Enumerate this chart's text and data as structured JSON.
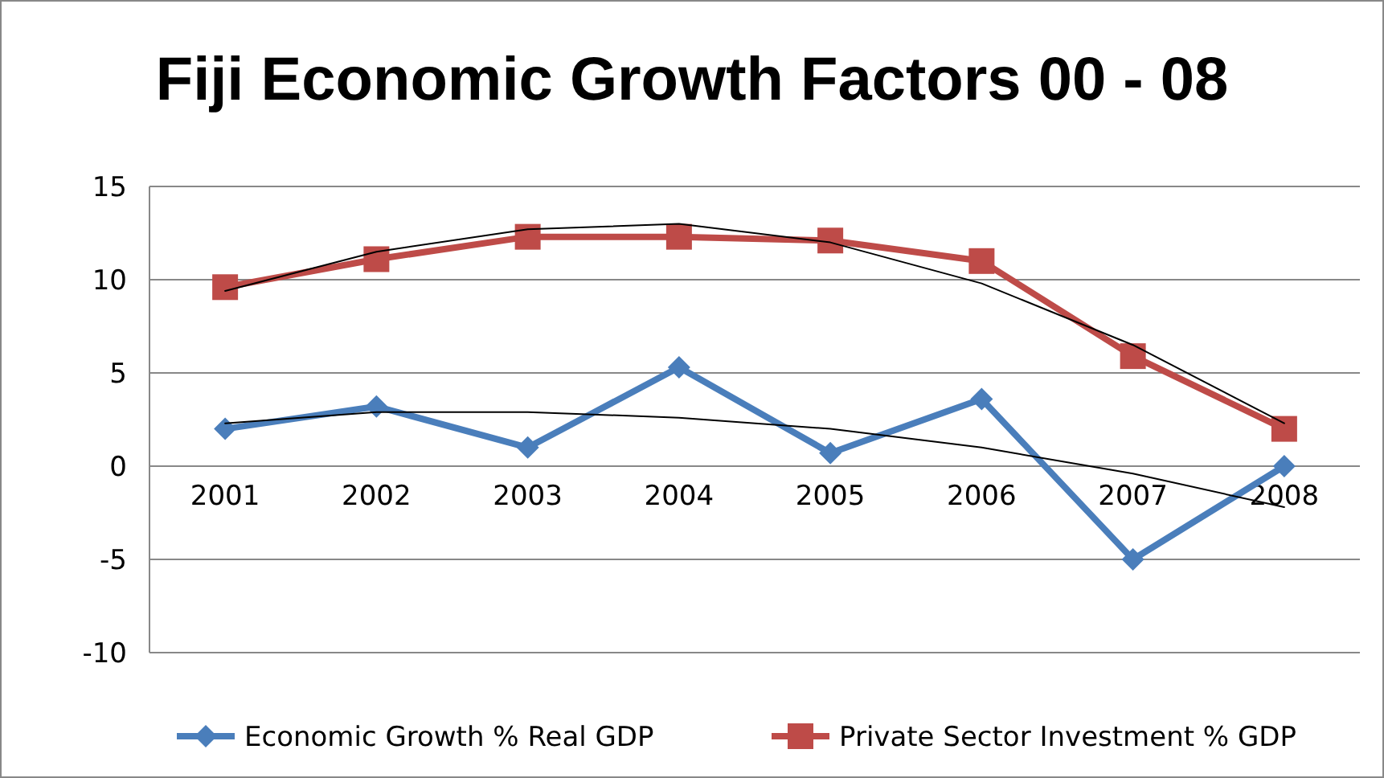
{
  "chart_data": {
    "type": "line",
    "title": "Fiji Economic Growth Factors 00 - 08",
    "categories": [
      "2001",
      "2002",
      "2003",
      "2004",
      "2005",
      "2006",
      "2007",
      "2008"
    ],
    "series": [
      {
        "name": "Economic Growth % Real GDP",
        "color": "#4a7ebb",
        "marker": "diamond",
        "values": [
          2.0,
          3.2,
          1.0,
          5.3,
          0.7,
          3.6,
          -5.0,
          0.0
        ]
      },
      {
        "name": "Private Sector Investment % GDP",
        "color": "#be4b48",
        "marker": "square",
        "values": [
          9.6,
          11.1,
          12.3,
          12.3,
          12.1,
          11.0,
          5.9,
          2.0
        ]
      },
      {
        "color": "#000000",
        "marker": "none",
        "values": [
          2.3,
          2.9,
          2.9,
          2.6,
          2.0,
          1.0,
          -0.4,
          -2.2
        ]
      },
      {
        "color": "#000000",
        "marker": "none",
        "values": [
          9.4,
          11.5,
          12.7,
          13.0,
          12.0,
          9.8,
          6.5,
          2.3
        ]
      }
    ],
    "ylim": [
      -10,
      15
    ],
    "yticks": [
      -10,
      -5,
      0,
      5,
      10,
      15
    ],
    "grid": "y",
    "legend": "bottom"
  }
}
